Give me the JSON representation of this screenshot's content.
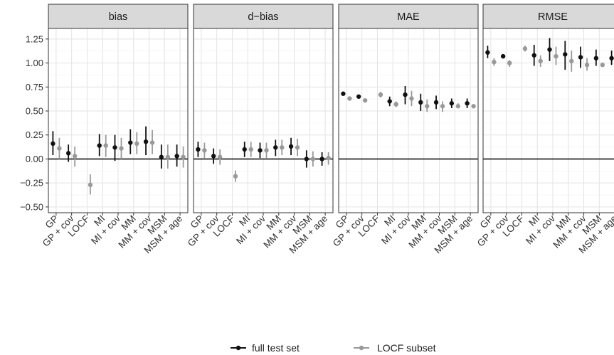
{
  "chart_data": {
    "type": "scatter",
    "chart_style": "faceted point-range (dot with error bar), dodged by series",
    "panels": [
      "bias",
      "d−bias",
      "MAE",
      "RMSE"
    ],
    "categories": [
      "GP",
      "GP + cov",
      "LOCF",
      "MI",
      "MI + cov",
      "MM",
      "MM + cov",
      "MSM",
      "MSM + age"
    ],
    "y_ticks": [
      "1.25",
      "1.00",
      "0.75",
      "0.50",
      "0.25",
      "0.00",
      "−0.25",
      "−0.50"
    ],
    "y_tick_values": [
      1.25,
      1.0,
      0.75,
      0.5,
      0.25,
      0.0,
      -0.25,
      -0.5
    ],
    "ylim": [
      -0.56,
      1.36
    ],
    "reference_line": 0,
    "grid": true,
    "legend_position": "bottom",
    "colors": {
      "full": "#111111",
      "locf": "#999999"
    },
    "series": [
      {
        "name": "full test set",
        "color": "#111111",
        "panels": {
          "bias": [
            {
              "category": "GP",
              "value": 0.16,
              "low": 0.04,
              "high": 0.29
            },
            {
              "category": "GP + cov",
              "value": 0.06,
              "low": -0.03,
              "high": 0.15
            },
            {
              "category": "MI",
              "value": 0.14,
              "low": 0.03,
              "high": 0.26
            },
            {
              "category": "MI + cov",
              "value": 0.12,
              "low": -0.02,
              "high": 0.25
            },
            {
              "category": "MM",
              "value": 0.17,
              "low": 0.05,
              "high": 0.31
            },
            {
              "category": "MM + cov",
              "value": 0.18,
              "low": 0.04,
              "high": 0.34
            },
            {
              "category": "MSM",
              "value": 0.02,
              "low": -0.1,
              "high": 0.15
            },
            {
              "category": "MSM + age",
              "value": 0.03,
              "low": -0.08,
              "high": 0.15
            }
          ],
          "d−bias": [
            {
              "category": "GP",
              "value": 0.1,
              "low": 0.02,
              "high": 0.18
            },
            {
              "category": "GP + cov",
              "value": 0.03,
              "low": -0.05,
              "high": 0.11
            },
            {
              "category": "MI",
              "value": 0.1,
              "low": 0.02,
              "high": 0.18
            },
            {
              "category": "MI + cov",
              "value": 0.09,
              "low": 0.01,
              "high": 0.17
            },
            {
              "category": "MM",
              "value": 0.12,
              "low": 0.03,
              "high": 0.2
            },
            {
              "category": "MM + cov",
              "value": 0.13,
              "low": 0.04,
              "high": 0.22
            },
            {
              "category": "MSM",
              "value": 0.0,
              "low": -0.09,
              "high": 0.09
            },
            {
              "category": "MSM + age",
              "value": 0.0,
              "low": -0.07,
              "high": 0.07
            }
          ],
          "MAE": [
            {
              "category": "GP",
              "value": 0.68,
              "low": 0.67,
              "high": 0.69
            },
            {
              "category": "GP + cov",
              "value": 0.65,
              "low": 0.63,
              "high": 0.67
            },
            {
              "category": "MI",
              "value": 0.6,
              "low": 0.55,
              "high": 0.65
            },
            {
              "category": "MI + cov",
              "value": 0.67,
              "low": 0.57,
              "high": 0.76
            },
            {
              "category": "MM",
              "value": 0.59,
              "low": 0.5,
              "high": 0.68
            },
            {
              "category": "MM + cov",
              "value": 0.59,
              "low": 0.52,
              "high": 0.66
            },
            {
              "category": "MSM",
              "value": 0.58,
              "low": 0.53,
              "high": 0.63
            },
            {
              "category": "MSM + age",
              "value": 0.58,
              "low": 0.53,
              "high": 0.63
            }
          ],
          "RMSE": [
            {
              "category": "GP",
              "value": 1.11,
              "low": 1.05,
              "high": 1.18
            },
            {
              "category": "GP + cov",
              "value": 1.07,
              "low": 1.05,
              "high": 1.09
            },
            {
              "category": "MI",
              "value": 1.08,
              "low": 0.97,
              "high": 1.19
            },
            {
              "category": "MI + cov",
              "value": 1.14,
              "low": 1.02,
              "high": 1.26
            },
            {
              "category": "MM",
              "value": 1.09,
              "low": 0.93,
              "high": 1.23
            },
            {
              "category": "MM + cov",
              "value": 1.06,
              "low": 0.95,
              "high": 1.17
            },
            {
              "category": "MSM",
              "value": 1.05,
              "low": 0.97,
              "high": 1.14
            },
            {
              "category": "MSM + age",
              "value": 1.05,
              "low": 0.98,
              "high": 1.13
            }
          ]
        }
      },
      {
        "name": "LOCF subset",
        "color": "#999999",
        "panels": {
          "bias": [
            {
              "category": "GP",
              "value": 0.11,
              "low": 0.0,
              "high": 0.22
            },
            {
              "category": "GP + cov",
              "value": 0.03,
              "low": -0.08,
              "high": 0.13
            },
            {
              "category": "LOCF",
              "value": -0.27,
              "low": -0.37,
              "high": -0.16
            },
            {
              "category": "MI",
              "value": 0.14,
              "low": 0.02,
              "high": 0.25
            },
            {
              "category": "MI + cov",
              "value": 0.11,
              "low": 0.0,
              "high": 0.22
            },
            {
              "category": "MM",
              "value": 0.16,
              "low": 0.05,
              "high": 0.28
            },
            {
              "category": "MM + cov",
              "value": 0.17,
              "low": 0.05,
              "high": 0.3
            },
            {
              "category": "MSM",
              "value": 0.02,
              "low": -0.1,
              "high": 0.15
            },
            {
              "category": "MSM + age",
              "value": 0.02,
              "low": -0.09,
              "high": 0.13
            }
          ],
          "d−bias": [
            {
              "category": "GP",
              "value": 0.09,
              "low": 0.01,
              "high": 0.17
            },
            {
              "category": "GP + cov",
              "value": 0.02,
              "low": -0.06,
              "high": 0.1
            },
            {
              "category": "LOCF",
              "value": -0.18,
              "low": -0.24,
              "high": -0.12
            },
            {
              "category": "MI",
              "value": 0.1,
              "low": 0.02,
              "high": 0.18
            },
            {
              "category": "MI + cov",
              "value": 0.09,
              "low": 0.01,
              "high": 0.17
            },
            {
              "category": "MM",
              "value": 0.12,
              "low": 0.04,
              "high": 0.2
            },
            {
              "category": "MM + cov",
              "value": 0.12,
              "low": 0.03,
              "high": 0.21
            },
            {
              "category": "MSM",
              "value": 0.0,
              "low": -0.08,
              "high": 0.08
            },
            {
              "category": "MSM + age",
              "value": 0.01,
              "low": -0.06,
              "high": 0.07
            }
          ],
          "MAE": [
            {
              "category": "GP",
              "value": 0.63,
              "low": 0.61,
              "high": 0.65
            },
            {
              "category": "GP + cov",
              "value": 0.61,
              "low": 0.6,
              "high": 0.62
            },
            {
              "category": "LOCF",
              "value": 0.67,
              "low": 0.64,
              "high": 0.7
            },
            {
              "category": "MI",
              "value": 0.57,
              "low": 0.54,
              "high": 0.6
            },
            {
              "category": "MI + cov",
              "value": 0.63,
              "low": 0.55,
              "high": 0.71
            },
            {
              "category": "MM",
              "value": 0.55,
              "low": 0.49,
              "high": 0.62
            },
            {
              "category": "MM + cov",
              "value": 0.55,
              "low": 0.49,
              "high": 0.6
            },
            {
              "category": "MSM",
              "value": 0.55,
              "low": 0.53,
              "high": 0.58
            },
            {
              "category": "MSM + age",
              "value": 0.55,
              "low": 0.53,
              "high": 0.57
            }
          ],
          "RMSE": [
            {
              "category": "GP",
              "value": 1.01,
              "low": 0.97,
              "high": 1.05
            },
            {
              "category": "GP + cov",
              "value": 1.0,
              "low": 0.96,
              "high": 1.03
            },
            {
              "category": "LOCF",
              "value": 1.15,
              "low": 1.12,
              "high": 1.18
            },
            {
              "category": "MI",
              "value": 1.02,
              "low": 0.96,
              "high": 1.08
            },
            {
              "category": "MI + cov",
              "value": 1.07,
              "low": 0.98,
              "high": 1.17
            },
            {
              "category": "MM",
              "value": 1.02,
              "low": 0.91,
              "high": 1.13
            },
            {
              "category": "MM + cov",
              "value": 0.98,
              "low": 0.92,
              "high": 1.05
            },
            {
              "category": "MSM",
              "value": 0.98,
              "low": 0.97,
              "high": 0.99
            },
            {
              "category": "MSM + age",
              "value": 0.98,
              "low": 0.97,
              "high": 0.99
            }
          ]
        }
      }
    ]
  }
}
